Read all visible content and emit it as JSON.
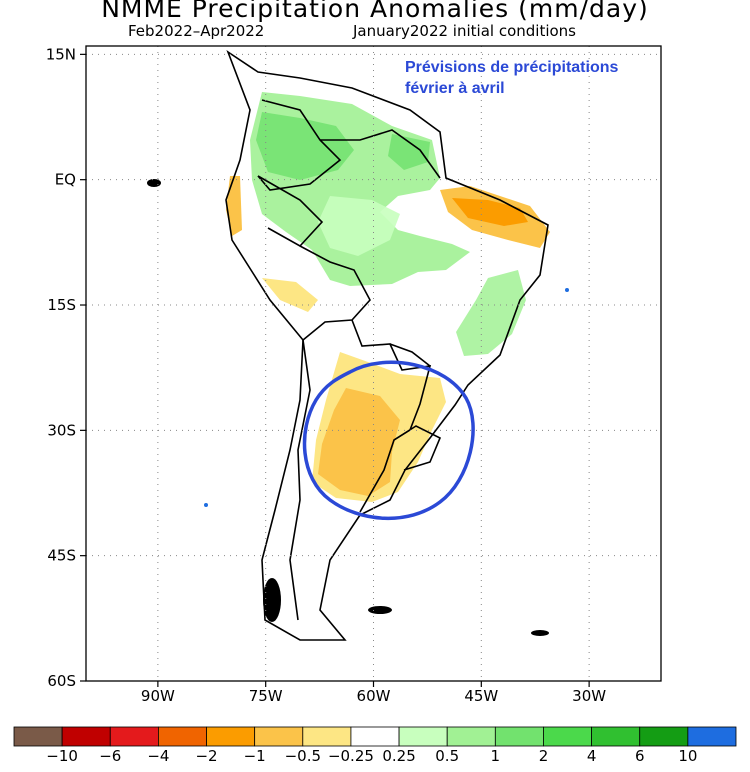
{
  "title": "NMME Precipitation Anomalies (mm/day)",
  "subtitle_left": "Feb2022–Apr2022",
  "subtitle_right": "January2022 initial conditions",
  "annotation": {
    "line1": "Prévisions de précipitations",
    "line2": "février à avril",
    "color": "#2b49d6"
  },
  "map": {
    "lat_labels": [
      "15N",
      "EQ",
      "15S",
      "30S",
      "45S",
      "60S"
    ],
    "lat_values": [
      15,
      0,
      -15,
      -30,
      -45,
      -60
    ],
    "lon_labels": [
      "90W",
      "75W",
      "60W",
      "45W",
      "30W"
    ],
    "lon_values": [
      -90,
      -75,
      -60,
      -45,
      -30
    ],
    "lon_range": [
      -100,
      -20
    ],
    "lat_range": [
      -60,
      16
    ],
    "grid": "dotted"
  },
  "colorbar": {
    "colors": [
      "#7a5a48",
      "#c00000",
      "#e41a1c",
      "#f06400",
      "#fb9c00",
      "#fbc349",
      "#fde684",
      "#ffffff",
      "#c8ffbe",
      "#a1f194",
      "#72e26e",
      "#4bd94b",
      "#30c030",
      "#149d14",
      "#1e6de0"
    ],
    "labels": [
      "−10",
      "−6",
      "−4",
      "−2",
      "−1",
      "−0.5",
      "−0.25",
      "0.25",
      "0.5",
      "1",
      "2",
      "4",
      "6",
      "10"
    ]
  }
}
